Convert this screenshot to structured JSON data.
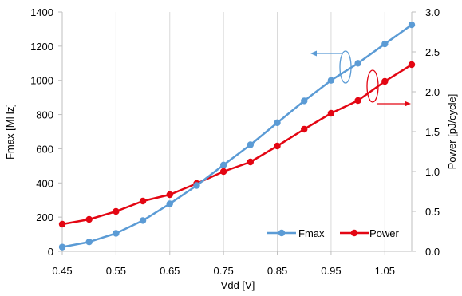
{
  "chart_data": {
    "type": "line",
    "xlabel": "Vdd [V]",
    "ylabel_left": "Fmax [MHz]",
    "ylabel_right": "Power [pJ/cycle]",
    "x": [
      0.45,
      0.5,
      0.55,
      0.6,
      0.65,
      0.7,
      0.75,
      0.8,
      0.85,
      0.9,
      0.95,
      1.0,
      1.05,
      1.1
    ],
    "xlim": [
      0.45,
      1.1
    ],
    "xticks": [
      0.45,
      0.55,
      0.65,
      0.75,
      0.85,
      0.95,
      1.05
    ],
    "xtick_labels": [
      "0.45",
      "0.55",
      "0.65",
      "0.75",
      "0.85",
      "0.95",
      "1.05"
    ],
    "ylim_left": [
      0,
      1400
    ],
    "yticks_left": [
      0,
      200,
      400,
      600,
      800,
      1000,
      1200,
      1400
    ],
    "ytick_labels_left": [
      "0",
      "200",
      "400",
      "600",
      "800",
      "1000",
      "1200",
      "1400"
    ],
    "ylim_right": [
      0,
      3.0
    ],
    "yticks_right": [
      0,
      0.5,
      1.0,
      1.5,
      2.0,
      2.5,
      3.0
    ],
    "ytick_labels_right": [
      "0.0",
      "0.5",
      "1.0",
      "1.5",
      "2.0",
      "2.5",
      "3.0"
    ],
    "grid": "vertical",
    "legend_position": "bottom-right",
    "series": [
      {
        "name": "Fmax",
        "axis": "left",
        "color": "#5B9BD5",
        "values": [
          25,
          55,
          105,
          180,
          278,
          385,
          505,
          623,
          752,
          880,
          1000,
          1100,
          1213,
          1325
        ]
      },
      {
        "name": "Power",
        "axis": "right",
        "color": "#E30613",
        "values": [
          0.34,
          0.4,
          0.5,
          0.63,
          0.71,
          0.85,
          1.0,
          1.12,
          1.32,
          1.53,
          1.73,
          1.89,
          2.13,
          2.34
        ]
      }
    ],
    "annotations": [
      {
        "name": "fmax-axis-arrow",
        "series": "Fmax",
        "points_to": "left axis"
      },
      {
        "name": "power-axis-arrow",
        "series": "Power",
        "points_to": "right axis"
      }
    ]
  }
}
